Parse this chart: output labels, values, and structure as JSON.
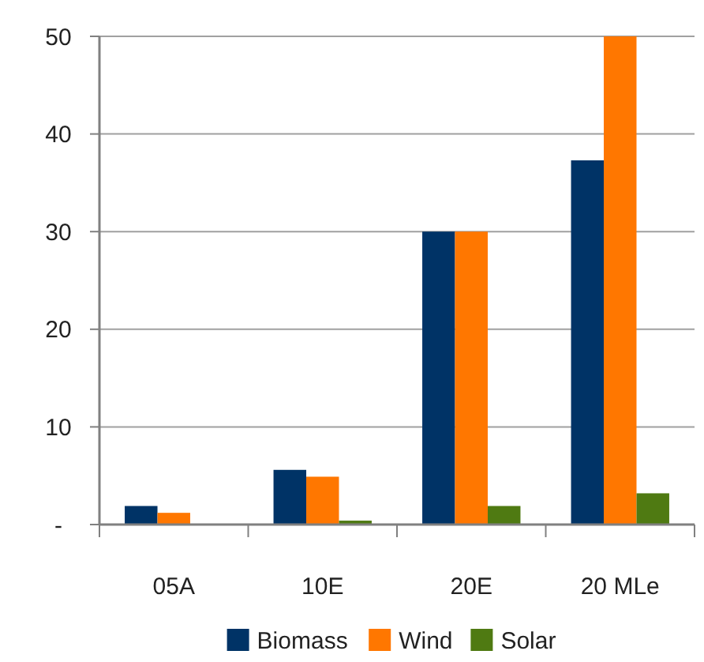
{
  "chart_data": {
    "type": "bar",
    "categories": [
      "05A",
      "10E",
      "20E",
      "20 MLe"
    ],
    "series": [
      {
        "name": "Biomass",
        "color": "#003366",
        "values": [
          1.9,
          5.6,
          30,
          37.3
        ]
      },
      {
        "name": "Wind",
        "color": "#ff7700",
        "values": [
          1.2,
          4.9,
          30,
          50
        ]
      },
      {
        "name": "Solar",
        "color": "#4f7a12",
        "values": [
          0,
          0.4,
          1.9,
          3.2
        ]
      }
    ],
    "ylim": [
      0,
      50
    ],
    "yticks": [
      {
        "value": 0,
        "label": "-"
      },
      10,
      20,
      30,
      40,
      50
    ],
    "grid": "y",
    "legend": "bottom"
  }
}
